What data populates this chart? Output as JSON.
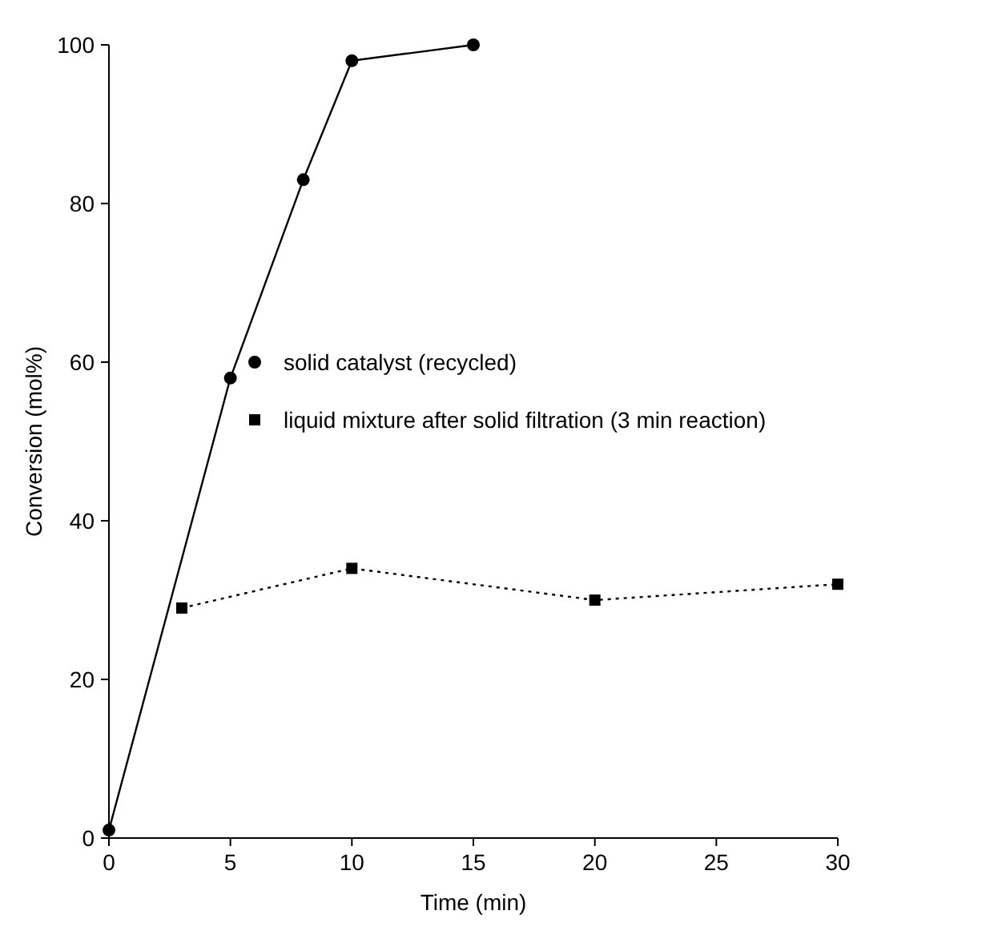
{
  "chart_data": {
    "type": "line",
    "xlabel": "Time (min)",
    "ylabel": "Conversion (mol%)",
    "xlim": [
      0,
      30
    ],
    "ylim": [
      0,
      100
    ],
    "xticks": [
      0,
      5,
      10,
      15,
      20,
      25,
      30
    ],
    "yticks": [
      0,
      20,
      40,
      60,
      80,
      100
    ],
    "grid": false,
    "legend": "center",
    "series": [
      {
        "name": "solid catalyst (recycled)",
        "color": "#000000",
        "x": [
          0,
          5,
          8,
          10,
          15
        ],
        "values": [
          1,
          58,
          83,
          98,
          100
        ],
        "marker": "circle",
        "line_style": "solid"
      },
      {
        "name": "liquid mixture after solid filtration (3 min reaction)",
        "color": "#000000",
        "x": [
          3,
          10,
          20,
          30
        ],
        "values": [
          29,
          34,
          30,
          32
        ],
        "marker": "square",
        "line_style": "dotted"
      }
    ]
  }
}
